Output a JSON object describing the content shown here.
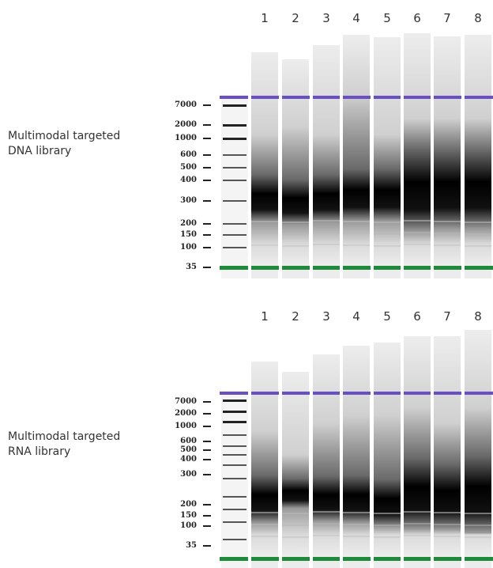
{
  "panels": [
    {
      "id": "dna",
      "label_line1": "Multimodal targeted",
      "label_line2": "DNA library",
      "lanes": [
        "1",
        "2",
        "3",
        "4",
        "5",
        "6",
        "7",
        "8"
      ],
      "size_markers": [
        "7000",
        "2000",
        "1000",
        "600",
        "500",
        "400",
        "300",
        "200",
        "150",
        "100",
        "35"
      ]
    },
    {
      "id": "rna",
      "label_line1": "Multimodal targeted",
      "label_line2": "RNA library",
      "lanes": [
        "1",
        "2",
        "3",
        "4",
        "5",
        "6",
        "7",
        "8"
      ],
      "size_markers": [
        "7000",
        "2000",
        "1000",
        "600",
        "500",
        "400",
        "300",
        "200",
        "150",
        "100",
        "35"
      ]
    }
  ],
  "colors": {
    "upper_marker": "#6a4fc4",
    "lower_marker": "#1f8a3a",
    "band": "#000000"
  }
}
